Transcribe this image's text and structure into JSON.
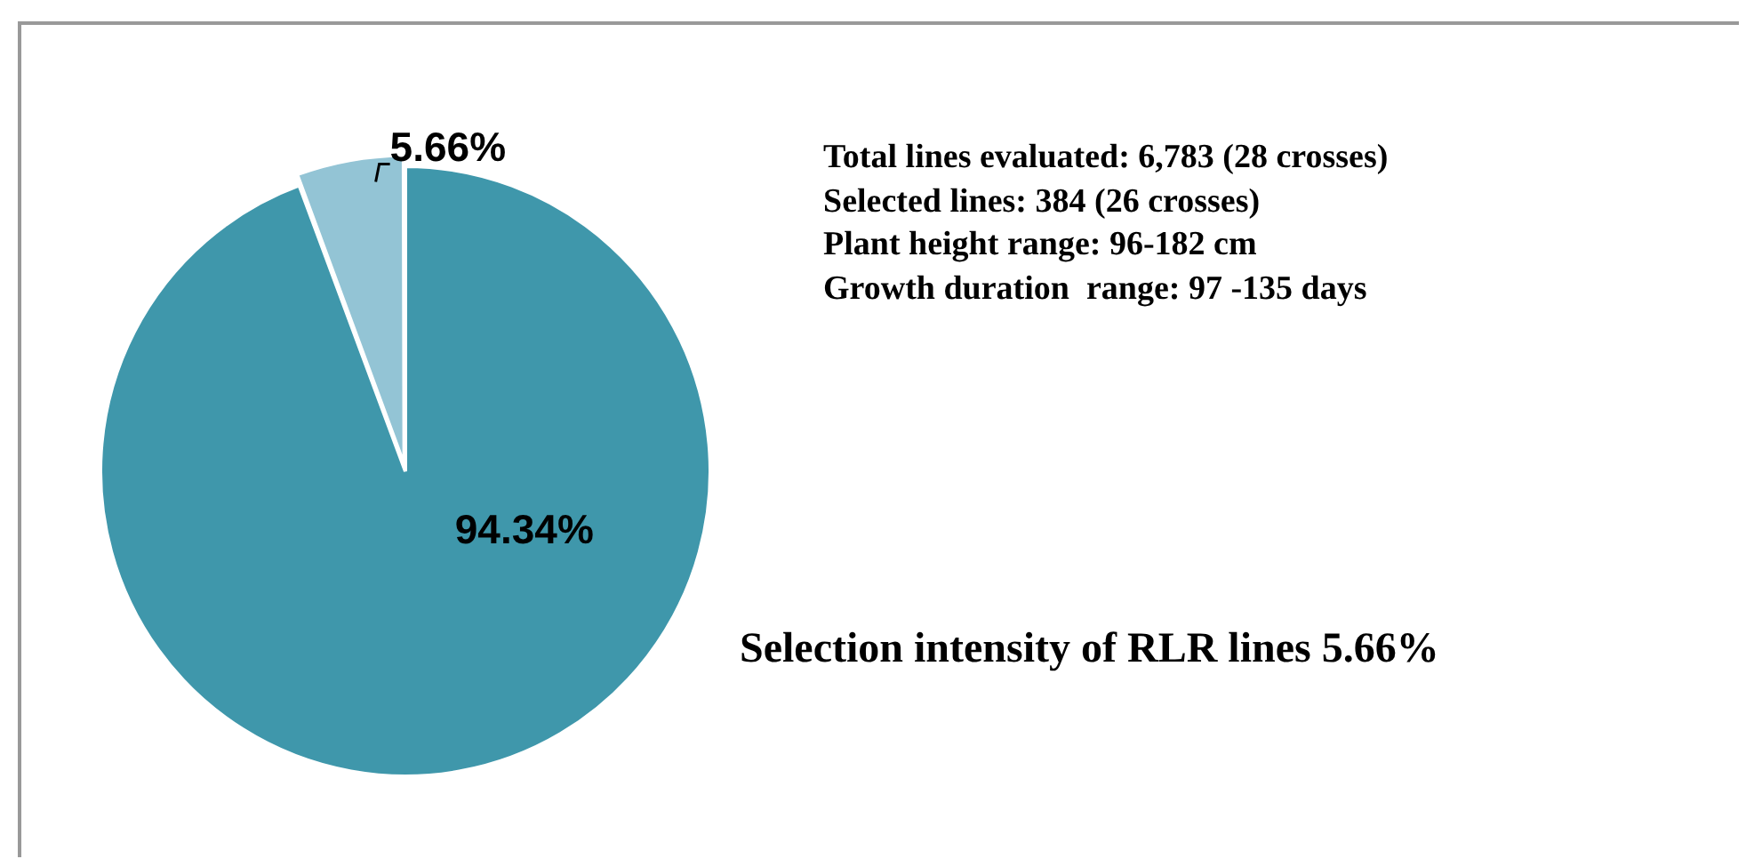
{
  "chart_data": {
    "type": "pie",
    "categories": [
      null,
      null
    ],
    "values": [
      94.34,
      5.66
    ],
    "colors": [
      "#3f97ab",
      "#93c4d5"
    ],
    "value_labels": [
      "94.34%",
      "5.66%"
    ],
    "legend": false,
    "annotations": [
      "Total lines evaluated: 6,783 (28 crosses)",
      "Selected lines: 384 (26 crosses)",
      "Plant height range: 96-182 cm",
      "Growth duration  range: 97 -135 days",
      "Selection intensity of RLR lines 5.66%"
    ]
  }
}
